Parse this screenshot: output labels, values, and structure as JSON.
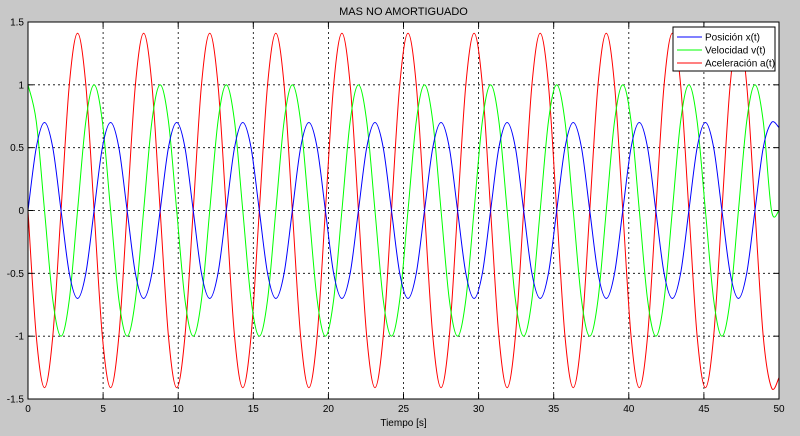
{
  "chart_data": {
    "type": "line",
    "title": "MAS NO AMORTIGUADO",
    "xlabel": "Tiempo [s]",
    "ylabel": "",
    "xlim": [
      0,
      50
    ],
    "ylim": [
      -1.5,
      1.5
    ],
    "xticks": [
      0,
      5,
      10,
      15,
      20,
      25,
      30,
      35,
      40,
      45,
      50
    ],
    "yticks": [
      -1.5,
      -1,
      -0.5,
      0,
      0.5,
      1,
      1.5
    ],
    "xtick_labels": [
      "0",
      "5",
      "10",
      "15",
      "20",
      "25",
      "30",
      "35",
      "40",
      "45",
      "50"
    ],
    "ytick_labels": [
      "-1.5",
      "-1",
      "-0.5",
      "0",
      "0.5",
      "1",
      "1.5"
    ],
    "grid": true,
    "legend_position": "top-right",
    "series": [
      {
        "name": "Posición x(t)",
        "color": "#0000ff",
        "x": [
          0,
          0.55,
          1.1,
          1.65,
          2.2,
          2.75,
          3.3,
          3.85,
          4.4,
          4.95,
          5.5,
          6.05,
          6.6,
          7.15,
          7.7,
          8.25,
          8.8,
          9.35,
          9.9,
          10.45,
          11.0,
          11.55,
          12.1,
          12.65,
          13.2,
          13.75,
          14.3,
          14.85,
          15.4,
          15.95,
          16.5,
          17.05,
          17.6,
          18.15,
          18.7,
          19.25,
          19.8,
          20.35,
          20.9,
          21.45,
          22.0,
          22.55,
          23.1,
          23.65,
          24.2,
          24.75,
          25.3,
          25.85,
          26.4,
          26.95,
          27.5,
          28.05,
          28.6,
          29.15,
          29.7,
          30.25,
          30.8,
          31.35,
          31.9,
          32.45,
          33.0,
          33.55,
          34.1,
          34.65,
          35.2,
          35.75,
          36.3,
          36.85,
          37.4,
          37.95,
          38.5,
          39.05,
          39.6,
          40.15,
          40.7,
          41.25,
          41.8,
          42.35,
          42.9,
          43.45,
          44.0,
          44.55,
          45.1,
          45.65,
          46.2,
          46.75,
          47.3,
          47.85,
          48.4,
          48.95,
          49.5,
          50.0
        ],
        "values": [
          0.0,
          0.5,
          0.7,
          0.5,
          0.0,
          -0.5,
          -0.7,
          -0.5,
          0.0,
          0.5,
          0.7,
          0.5,
          0.0,
          -0.5,
          -0.7,
          -0.5,
          0.0,
          0.5,
          0.7,
          0.5,
          0.0,
          -0.5,
          -0.7,
          -0.5,
          0.0,
          0.5,
          0.7,
          0.5,
          0.0,
          -0.5,
          -0.7,
          -0.5,
          0.0,
          0.5,
          0.7,
          0.5,
          0.0,
          -0.5,
          -0.7,
          -0.5,
          0.0,
          0.5,
          0.7,
          0.5,
          0.0,
          -0.5,
          -0.7,
          -0.5,
          0.0,
          0.5,
          0.7,
          0.5,
          0.0,
          -0.5,
          -0.7,
          -0.5,
          0.0,
          0.5,
          0.7,
          0.5,
          0.0,
          -0.5,
          -0.7,
          -0.5,
          0.0,
          0.5,
          0.7,
          0.5,
          0.0,
          -0.5,
          -0.7,
          -0.5,
          0.0,
          0.5,
          0.7,
          0.5,
          0.0,
          -0.5,
          -0.7,
          -0.5,
          0.0,
          0.5,
          0.7,
          0.5,
          0.0,
          -0.5,
          -0.7,
          -0.5,
          0.0,
          0.5,
          0.7,
          0.66
        ]
      },
      {
        "name": "Velocidad v(t)",
        "color": "#00ff00",
        "x": [
          0,
          0.55,
          1.1,
          1.65,
          2.2,
          2.75,
          3.3,
          3.85,
          4.4,
          4.95,
          5.5,
          6.05,
          6.6,
          7.15,
          7.7,
          8.25,
          8.8,
          9.35,
          9.9,
          10.45,
          11.0,
          11.55,
          12.1,
          12.65,
          13.2,
          13.75,
          14.3,
          14.85,
          15.4,
          15.95,
          16.5,
          17.05,
          17.6,
          18.15,
          18.7,
          19.25,
          19.8,
          20.35,
          20.9,
          21.45,
          22.0,
          22.55,
          23.1,
          23.65,
          24.2,
          24.75,
          25.3,
          25.85,
          26.4,
          26.95,
          27.5,
          28.05,
          28.6,
          29.15,
          29.7,
          30.25,
          30.8,
          31.35,
          31.9,
          32.45,
          33.0,
          33.55,
          34.1,
          34.65,
          35.2,
          35.75,
          36.3,
          36.85,
          37.4,
          37.95,
          38.5,
          39.05,
          39.6,
          40.15,
          40.7,
          41.25,
          41.8,
          42.35,
          42.9,
          43.45,
          44.0,
          44.55,
          45.1,
          45.65,
          46.2,
          46.75,
          47.3,
          47.85,
          48.4,
          48.95,
          49.5,
          50.0
        ],
        "values": [
          1.0,
          0.71,
          0.0,
          -0.71,
          -1.0,
          -0.71,
          0.0,
          0.71,
          1.0,
          0.71,
          0.0,
          -0.71,
          -1.0,
          -0.71,
          0.0,
          0.71,
          1.0,
          0.71,
          0.0,
          -0.71,
          -1.0,
          -0.71,
          0.0,
          0.71,
          1.0,
          0.71,
          0.0,
          -0.71,
          -1.0,
          -0.71,
          0.0,
          0.71,
          1.0,
          0.71,
          0.0,
          -0.71,
          -1.0,
          -0.71,
          0.0,
          0.71,
          1.0,
          0.71,
          0.0,
          -0.71,
          -1.0,
          -0.71,
          0.0,
          0.71,
          1.0,
          0.71,
          0.0,
          -0.71,
          -1.0,
          -0.71,
          0.0,
          0.71,
          1.0,
          0.71,
          0.0,
          -0.71,
          -1.0,
          -0.71,
          0.0,
          0.71,
          1.0,
          0.71,
          0.0,
          -0.71,
          -1.0,
          -0.71,
          0.0,
          0.71,
          1.0,
          0.71,
          0.0,
          -0.71,
          -1.0,
          -0.71,
          0.0,
          0.71,
          1.0,
          0.71,
          0.0,
          -0.71,
          -1.0,
          -0.71,
          0.0,
          0.71,
          1.0,
          0.71,
          0.0,
          0.0
        ]
      },
      {
        "name": "Aceleración a(t)",
        "color": "#ff0000",
        "x": [
          0,
          0.55,
          1.1,
          1.65,
          2.2,
          2.75,
          3.3,
          3.85,
          4.4,
          4.95,
          5.5,
          6.05,
          6.6,
          7.15,
          7.7,
          8.25,
          8.8,
          9.35,
          9.9,
          10.45,
          11.0,
          11.55,
          12.1,
          12.65,
          13.2,
          13.75,
          14.3,
          14.85,
          15.4,
          15.95,
          16.5,
          17.05,
          17.6,
          18.15,
          18.7,
          19.25,
          19.8,
          20.35,
          20.9,
          21.45,
          22.0,
          22.55,
          23.1,
          23.65,
          24.2,
          24.75,
          25.3,
          25.85,
          26.4,
          26.95,
          27.5,
          28.05,
          28.6,
          29.15,
          29.7,
          30.25,
          30.8,
          31.35,
          31.9,
          32.45,
          33.0,
          33.55,
          34.1,
          34.65,
          35.2,
          35.75,
          36.3,
          36.85,
          37.4,
          37.95,
          38.5,
          39.05,
          39.6,
          40.15,
          40.7,
          41.25,
          41.8,
          42.35,
          42.9,
          43.45,
          44.0,
          44.55,
          45.1,
          45.65,
          46.2,
          46.75,
          47.3,
          47.85,
          48.4,
          48.95,
          49.5,
          50.0
        ],
        "values": [
          0.0,
          -1.0,
          -1.41,
          -1.0,
          0.0,
          1.0,
          1.41,
          1.0,
          0.0,
          -1.0,
          -1.41,
          -1.0,
          0.0,
          1.0,
          1.41,
          1.0,
          0.0,
          -1.0,
          -1.41,
          -1.0,
          0.0,
          1.0,
          1.41,
          1.0,
          0.0,
          -1.0,
          -1.41,
          -1.0,
          0.0,
          1.0,
          1.41,
          1.0,
          0.0,
          -1.0,
          -1.41,
          -1.0,
          0.0,
          1.0,
          1.41,
          1.0,
          0.0,
          -1.0,
          -1.41,
          -1.0,
          0.0,
          1.0,
          1.41,
          1.0,
          0.0,
          -1.0,
          -1.41,
          -1.0,
          0.0,
          1.0,
          1.41,
          1.0,
          0.0,
          -1.0,
          -1.41,
          -1.0,
          0.0,
          1.0,
          1.41,
          1.0,
          0.0,
          -1.0,
          -1.41,
          -1.0,
          0.0,
          1.0,
          1.41,
          1.0,
          0.0,
          -1.0,
          -1.41,
          -1.0,
          0.0,
          1.0,
          1.41,
          1.0,
          0.0,
          -1.0,
          -1.41,
          -1.0,
          0.0,
          1.0,
          1.41,
          1.0,
          0.0,
          -1.0,
          -1.41,
          -1.33
        ]
      }
    ]
  }
}
